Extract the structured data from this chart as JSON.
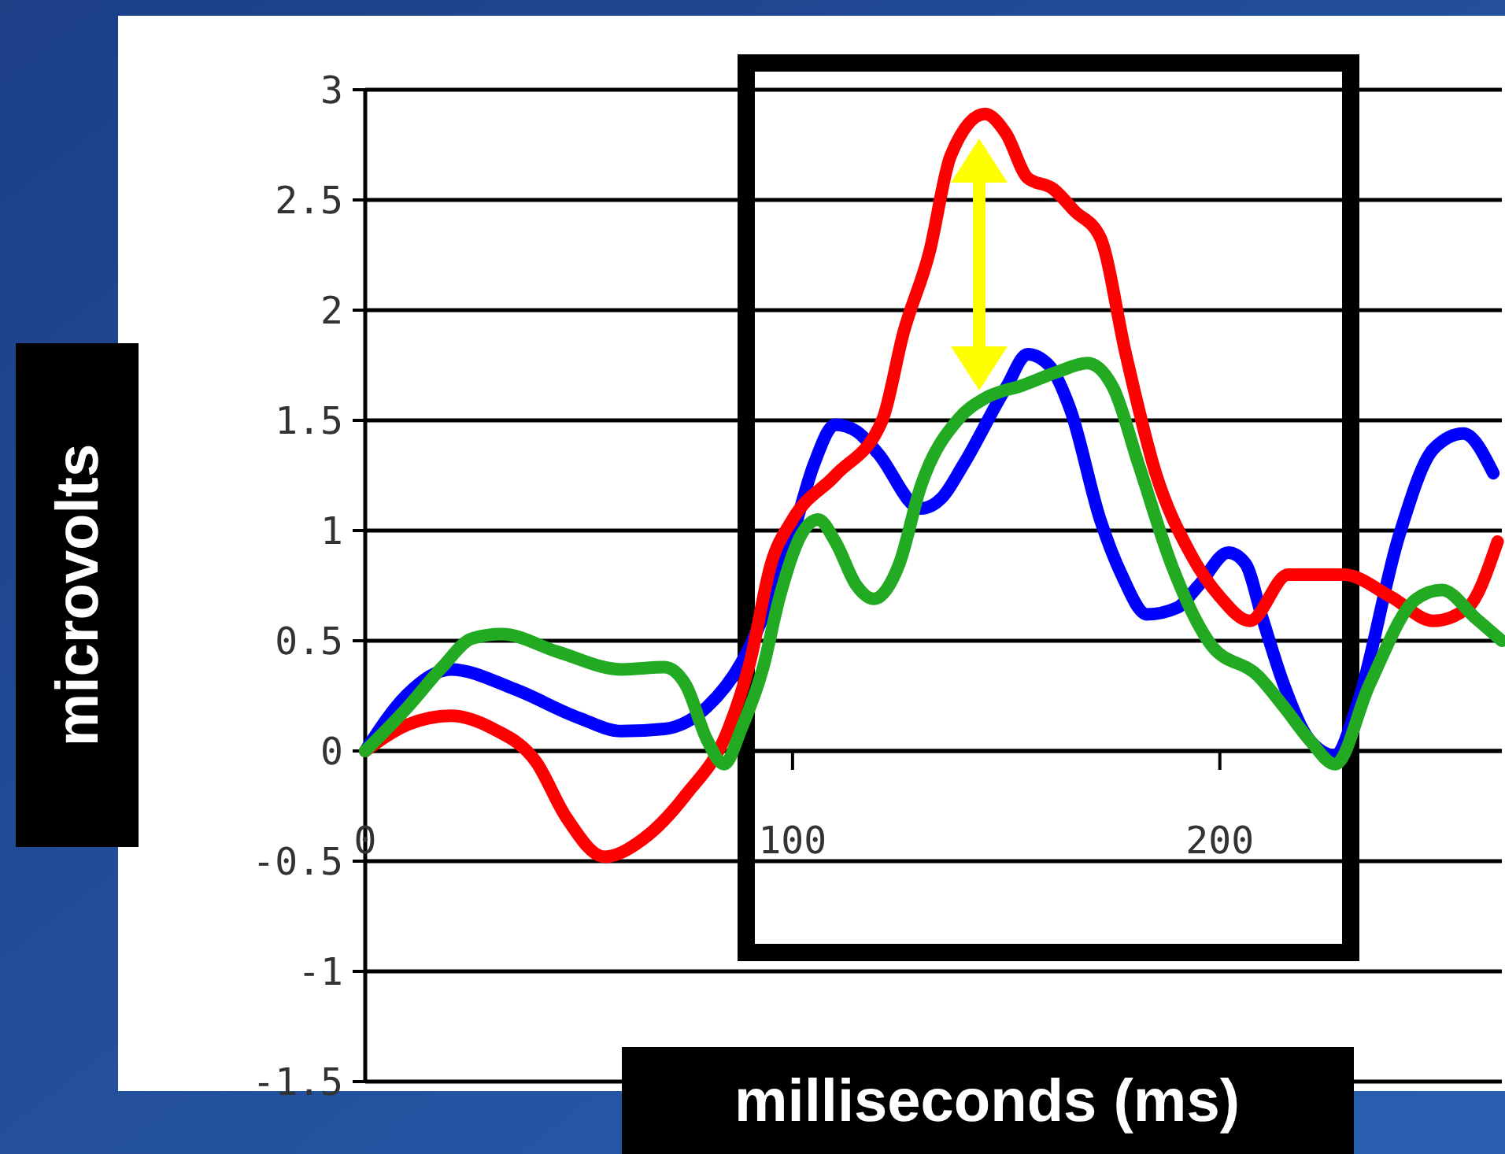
{
  "chart_data": {
    "type": "line",
    "xlabel": "milliseconds (ms)",
    "ylabel": "microvolts",
    "xlim": [
      0,
      266
    ],
    "ylim": [
      -1.5,
      3
    ],
    "xticks": [
      0,
      100,
      200
    ],
    "yticks": [
      3,
      2.5,
      2,
      1.5,
      1,
      0.5,
      0,
      -0.5,
      -1,
      -1.5
    ],
    "grid": "y",
    "line_style": "solid",
    "series": [
      {
        "color": "#0000ff",
        "x": [
          0,
          10,
          20,
          35,
          50,
          60,
          70,
          80,
          88,
          95,
          100,
          105,
          110,
          115,
          120,
          130,
          135,
          140,
          150,
          155,
          160,
          165,
          172,
          177,
          183,
          190,
          195,
          202,
          206,
          210,
          215,
          221,
          227,
          232,
          242,
          250,
          257,
          264
        ],
        "values": [
          0,
          0.26,
          0.37,
          0.28,
          0.15,
          0.09,
          0.1,
          0.2,
          0.4,
          0.7,
          0.98,
          1.3,
          1.48,
          1.45,
          1.35,
          1.1,
          1.15,
          1.3,
          1.65,
          1.8,
          1.75,
          1.55,
          1.05,
          0.8,
          0.62,
          0.65,
          0.75,
          0.9,
          0.85,
          0.6,
          0.3,
          0.05,
          -0.02,
          0.2,
          0.98,
          1.37,
          1.44,
          1.26
        ]
      },
      {
        "color": "#ff0000",
        "x": [
          0,
          10,
          20,
          30,
          40,
          47,
          56,
          65,
          75,
          85,
          90,
          95,
          100,
          110,
          121,
          126,
          132,
          137,
          145,
          150,
          155,
          161,
          166,
          172,
          178,
          185,
          193,
          200,
          207,
          216,
          229,
          240,
          250,
          258,
          265
        ],
        "values": [
          0,
          0.12,
          0.16,
          0.1,
          -0.05,
          -0.3,
          -0.48,
          -0.4,
          -0.2,
          0.1,
          0.4,
          0.85,
          1.05,
          1.25,
          1.5,
          1.9,
          2.26,
          2.7,
          2.89,
          2.8,
          2.6,
          2.55,
          2.45,
          2.33,
          1.8,
          1.26,
          0.9,
          0.7,
          0.59,
          0.8,
          0.8,
          0.7,
          0.59,
          0.65,
          0.95
        ]
      },
      {
        "color": "#22aa22",
        "x": [
          0,
          10,
          18,
          25,
          32,
          45,
          60,
          70,
          75,
          80,
          84,
          88,
          93,
          97,
          102,
          106,
          110,
          115,
          119,
          125,
          130,
          139,
          145,
          154,
          162,
          169,
          175,
          181,
          189,
          198,
          209,
          215,
          221,
          227,
          235,
          246,
          252,
          260,
          266
        ],
        "values": [
          0,
          0.2,
          0.38,
          0.51,
          0.53,
          0.45,
          0.37,
          0.38,
          0.3,
          0.05,
          -0.06,
          0.1,
          0.37,
          0.7,
          0.98,
          1.05,
          0.95,
          0.75,
          0.69,
          0.85,
          1.2,
          1.51,
          1.6,
          1.66,
          1.72,
          1.76,
          1.65,
          1.3,
          0.83,
          0.48,
          0.34,
          0.2,
          0.05,
          -0.06,
          0.3,
          0.69,
          0.73,
          0.6,
          0.5
        ]
      }
    ]
  }
}
